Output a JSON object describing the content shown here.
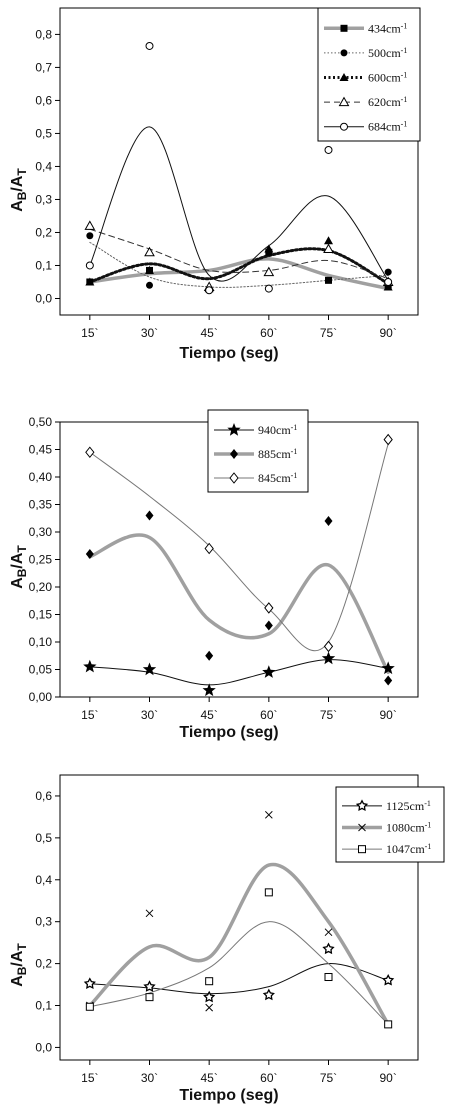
{
  "chart_data": [
    {
      "type": "scatter",
      "xlabel": "Tiempo (seg)",
      "ylabel": "A_B/A_T",
      "categories": [
        "15`",
        "30`",
        "45`",
        "60`",
        "75`",
        "90`"
      ],
      "yticks": [
        "0,0",
        "0,1",
        "0,2",
        "0,3",
        "0,4",
        "0,5",
        "0,6",
        "0,7",
        "0,8"
      ],
      "ylim": [
        -0.05,
        0.88
      ],
      "legend_position": "top-right",
      "series": [
        {
          "name": "434cm-1",
          "marker": "square-filled",
          "line": "thick-gray",
          "color": "#9a9a9a",
          "values": [
            0.05,
            0.085,
            null,
            0.14,
            0.055,
            0.04
          ],
          "curve": [
            0.05,
            0.075,
            0.085,
            0.12,
            0.07,
            0.03
          ]
        },
        {
          "name": "500cm-1",
          "marker": "circle-filled",
          "line": "dotted-thin",
          "color": "#777777",
          "values": [
            0.19,
            0.04,
            null,
            0.03,
            null,
            0.08
          ],
          "curve": [
            0.17,
            0.065,
            0.035,
            0.04,
            0.055,
            0.07
          ]
        },
        {
          "name": "600cm-1",
          "marker": "triangle-filled",
          "line": "dotted-thick",
          "color": "#111111",
          "values": [
            0.05,
            0.085,
            0.03,
            0.15,
            0.175,
            0.035
          ],
          "curve": [
            0.05,
            0.105,
            0.06,
            0.13,
            0.145,
            0.045
          ]
        },
        {
          "name": "620cm-1",
          "marker": "triangle-open",
          "line": "dashed",
          "color": "#333333",
          "values": [
            0.22,
            0.14,
            0.035,
            0.08,
            0.15,
            0.05
          ],
          "curve": [
            0.21,
            0.15,
            0.085,
            0.085,
            0.115,
            0.06
          ]
        },
        {
          "name": "684cm-1",
          "marker": "circle-open",
          "line": "solid",
          "color": "#111111",
          "values": [
            0.1,
            0.765,
            0.025,
            0.03,
            0.45,
            0.05
          ],
          "curve": [
            0.1,
            0.52,
            0.07,
            0.16,
            0.31,
            0.055
          ]
        }
      ]
    },
    {
      "type": "scatter",
      "xlabel": "Tiempo (seg)",
      "ylabel": "A_B/A_T",
      "categories": [
        "15`",
        "30`",
        "45`",
        "60`",
        "75`",
        "90`"
      ],
      "yticks": [
        "0,00",
        "0,05",
        "0,10",
        "0,15",
        "0,20",
        "0,25",
        "0,30",
        "0,35",
        "0,40",
        "0,45",
        "0,50"
      ],
      "ylim": [
        0,
        0.5
      ],
      "legend_position": "top-left",
      "series": [
        {
          "name": "940cm-1",
          "marker": "star-filled",
          "line": "solid",
          "color": "#111111",
          "values": [
            0.055,
            0.05,
            0.012,
            0.045,
            0.07,
            0.052
          ],
          "curve": [
            0.055,
            0.045,
            0.022,
            0.045,
            0.068,
            0.052
          ]
        },
        {
          "name": "885cm-1",
          "marker": "diamond-filled",
          "line": "thick-gray",
          "color": "#9a9a9a",
          "values": [
            0.26,
            0.33,
            0.075,
            0.13,
            0.32,
            0.03
          ],
          "curve": [
            0.255,
            0.29,
            0.14,
            0.115,
            0.24,
            0.045
          ]
        },
        {
          "name": "845cm-1",
          "marker": "diamond-open",
          "line": "thin-gray",
          "color": "#555555",
          "values": [
            0.445,
            null,
            0.27,
            0.162,
            0.092,
            0.468
          ],
          "curve": [
            0.445,
            0.365,
            0.275,
            0.16,
            0.1,
            0.46
          ]
        }
      ]
    },
    {
      "type": "scatter",
      "xlabel": "Tiempo (seg)",
      "ylabel": "A_B/A_T",
      "categories": [
        "15`",
        "30`",
        "45`",
        "60`",
        "75`",
        "90`"
      ],
      "yticks": [
        "0,0",
        "0,1",
        "0,2",
        "0,3",
        "0,4",
        "0,5",
        "0,6"
      ],
      "ylim": [
        -0.03,
        0.65
      ],
      "legend_position": "top-right",
      "series": [
        {
          "name": "1125cm-1",
          "marker": "star-open",
          "line": "solid",
          "color": "#111111",
          "values": [
            0.152,
            0.145,
            0.12,
            0.125,
            0.235,
            0.16
          ],
          "curve": [
            0.152,
            0.142,
            0.128,
            0.145,
            0.2,
            0.16
          ]
        },
        {
          "name": "1080cm-1",
          "marker": "cross",
          "line": "thick-gray",
          "color": "#9a9a9a",
          "values": [
            0.1,
            0.32,
            0.095,
            0.555,
            0.275,
            0.055
          ],
          "curve": [
            0.1,
            0.24,
            0.215,
            0.435,
            0.3,
            0.055
          ]
        },
        {
          "name": "1047cm-1",
          "marker": "square-open",
          "line": "thin-gray",
          "color": "#666666",
          "values": [
            0.097,
            0.12,
            0.158,
            0.37,
            0.168,
            0.055
          ],
          "curve": [
            0.097,
            0.13,
            0.19,
            0.3,
            0.2,
            0.055
          ]
        }
      ]
    }
  ]
}
